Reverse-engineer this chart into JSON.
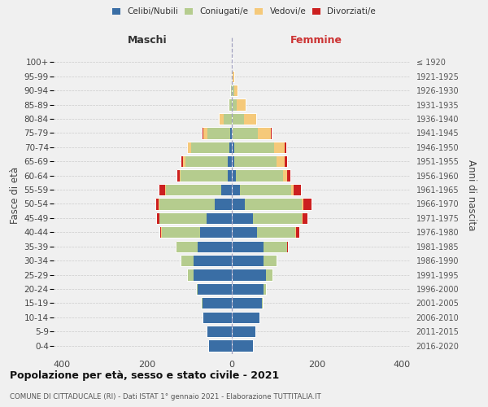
{
  "age_groups": [
    "0-4",
    "5-9",
    "10-14",
    "15-19",
    "20-24",
    "25-29",
    "30-34",
    "35-39",
    "40-44",
    "45-49",
    "50-54",
    "55-59",
    "60-64",
    "65-69",
    "70-74",
    "75-79",
    "80-84",
    "85-89",
    "90-94",
    "95-99",
    "100+"
  ],
  "birth_years": [
    "2016-2020",
    "2011-2015",
    "2006-2010",
    "2001-2005",
    "1996-2000",
    "1991-1995",
    "1986-1990",
    "1981-1985",
    "1976-1980",
    "1971-1975",
    "1966-1970",
    "1961-1965",
    "1956-1960",
    "1951-1955",
    "1946-1950",
    "1941-1945",
    "1936-1940",
    "1931-1935",
    "1926-1930",
    "1921-1925",
    "≤ 1920"
  ],
  "colors": {
    "celibe": "#3A6EA5",
    "coniugato": "#B5CC8E",
    "vedovo": "#F5C97A",
    "divorziato": "#CC2020"
  },
  "maschi": {
    "celibe": [
      55,
      60,
      70,
      70,
      80,
      90,
      90,
      80,
      75,
      60,
      40,
      25,
      10,
      10,
      5,
      3,
      0,
      0,
      0,
      0,
      0
    ],
    "coniugato": [
      0,
      0,
      0,
      3,
      5,
      15,
      30,
      50,
      90,
      110,
      130,
      130,
      110,
      100,
      90,
      55,
      20,
      5,
      2,
      0,
      0
    ],
    "vedovo": [
      0,
      0,
      0,
      0,
      0,
      0,
      0,
      0,
      1,
      1,
      2,
      2,
      3,
      5,
      8,
      10,
      10,
      3,
      1,
      0,
      0
    ],
    "divorziato": [
      0,
      0,
      0,
      0,
      0,
      0,
      1,
      2,
      5,
      8,
      8,
      15,
      8,
      5,
      3,
      3,
      0,
      0,
      0,
      0,
      0
    ]
  },
  "femmine": {
    "nubile": [
      50,
      55,
      65,
      70,
      75,
      80,
      75,
      75,
      60,
      50,
      30,
      20,
      10,
      5,
      5,
      2,
      0,
      0,
      0,
      0,
      0
    ],
    "coniugata": [
      0,
      0,
      0,
      3,
      5,
      15,
      30,
      55,
      90,
      115,
      135,
      120,
      110,
      100,
      95,
      60,
      28,
      12,
      5,
      2,
      0
    ],
    "vedova": [
      0,
      0,
      0,
      0,
      0,
      0,
      0,
      0,
      1,
      2,
      3,
      5,
      10,
      20,
      25,
      30,
      30,
      20,
      8,
      3,
      1
    ],
    "divorziata": [
      0,
      0,
      0,
      0,
      0,
      1,
      1,
      3,
      8,
      12,
      20,
      18,
      8,
      5,
      3,
      2,
      0,
      0,
      0,
      0,
      0
    ]
  },
  "title": "Popolazione per età, sesso e stato civile - 2021",
  "subtitle": "COMUNE DI CITTADUCALE (RI) - Dati ISTAT 1° gennaio 2021 - Elaborazione TUTTITALIA.IT",
  "xlabel_left": "Maschi",
  "xlabel_right": "Femmine",
  "ylabel_left": "Fasce di età",
  "ylabel_right": "Anni di nascita",
  "xlim": 420,
  "legend_labels": [
    "Celibi/Nubili",
    "Coniugati/e",
    "Vedovi/e",
    "Divorziati/e"
  ],
  "bg_color": "#f0f0f0",
  "axes_bg": "#f0f0f0"
}
